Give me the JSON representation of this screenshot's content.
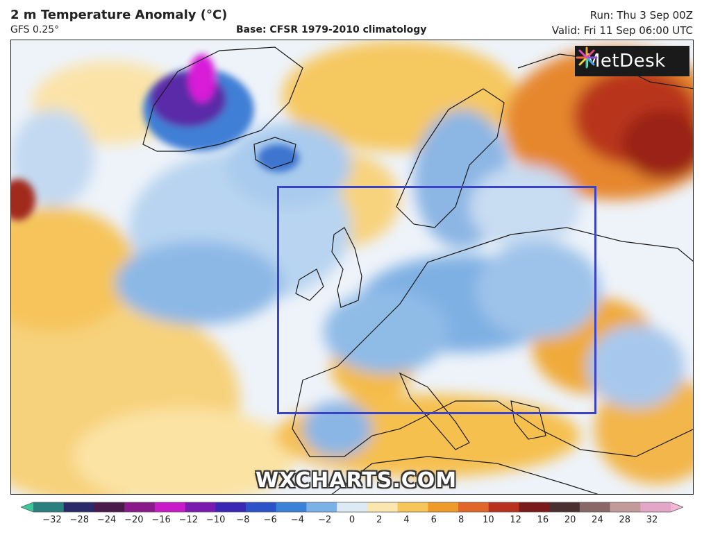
{
  "header": {
    "title": "2 m Temperature Anomaly (°C)",
    "model": "GFS 0.25°",
    "base": "Base: CFSR 1979-2010 climatology",
    "run": "Run: Thu 3 Sep 00Z",
    "valid": "Valid: Fri 11 Sep 06:00 UTC"
  },
  "logo": {
    "text": "MetDesk"
  },
  "watermark": "WXCHARTS.COM",
  "colorbar": {
    "ticks": [
      "−32",
      "−28",
      "−24",
      "−20",
      "−16",
      "−12",
      "−10",
      "−8",
      "−6",
      "−4",
      "−2",
      "0",
      "2",
      "4",
      "6",
      "8",
      "10",
      "12",
      "16",
      "20",
      "24",
      "28",
      "32"
    ],
    "colors": [
      "#3cc79a",
      "#2a7f7f",
      "#2a2a6a",
      "#4a1a4a",
      "#8a1a8a",
      "#c81ac8",
      "#7a1ab0",
      "#3a28b4",
      "#2c52c8",
      "#3a82d8",
      "#7ab2e8",
      "#dceaf6",
      "#fbe6b0",
      "#f6c658",
      "#ee9b2a",
      "#e0662a",
      "#b8301e",
      "#7a1a1a",
      "#4a3030",
      "#8a6868",
      "#c29a9a",
      "#e4a6c6",
      "#f4b6d6"
    ]
  },
  "colors": {
    "highlight_box": "#3a43c7",
    "land_outline": "#1a1a1a"
  }
}
